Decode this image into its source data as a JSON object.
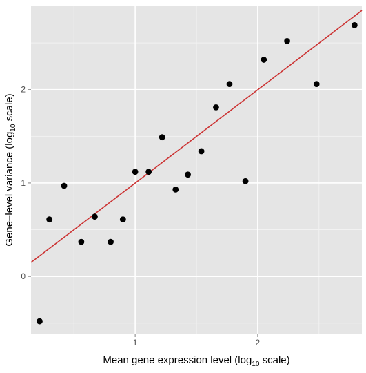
{
  "chart_data": {
    "type": "scatter",
    "title": "",
    "xlabel": {
      "prefix": "Mean gene expression level (log",
      "subscript": "10",
      "suffix": " scale)"
    },
    "ylabel": {
      "prefix": "Gene–level variance (log",
      "subscript": "10",
      "suffix": " scale)"
    },
    "xlim": [
      0.15,
      2.85
    ],
    "ylim": [
      -0.62,
      2.9
    ],
    "x_ticks": [
      1,
      2
    ],
    "x_tick_labels": [
      "1",
      "2"
    ],
    "y_ticks": [
      0,
      1,
      2
    ],
    "y_tick_labels": [
      "0",
      "1",
      "2"
    ],
    "grid": true,
    "legend": "none",
    "colors": {
      "panel_background": "#e5e5e5",
      "grid_major": "#ffffff",
      "grid_minor": "#f2f2f2",
      "points": "#000000",
      "fit_line": "#cc3333"
    },
    "points": [
      {
        "x": 0.22,
        "y": -0.48
      },
      {
        "x": 0.3,
        "y": 0.61
      },
      {
        "x": 0.42,
        "y": 0.97
      },
      {
        "x": 0.56,
        "y": 0.37
      },
      {
        "x": 0.67,
        "y": 0.64
      },
      {
        "x": 0.8,
        "y": 0.37
      },
      {
        "x": 0.9,
        "y": 0.61
      },
      {
        "x": 1.0,
        "y": 1.12
      },
      {
        "x": 1.11,
        "y": 1.12
      },
      {
        "x": 1.22,
        "y": 1.49
      },
      {
        "x": 1.33,
        "y": 0.93
      },
      {
        "x": 1.43,
        "y": 1.09
      },
      {
        "x": 1.54,
        "y": 1.34
      },
      {
        "x": 1.66,
        "y": 1.81
      },
      {
        "x": 1.77,
        "y": 2.06
      },
      {
        "x": 1.9,
        "y": 1.02
      },
      {
        "x": 2.05,
        "y": 2.32
      },
      {
        "x": 2.24,
        "y": 2.52
      },
      {
        "x": 2.48,
        "y": 2.06
      },
      {
        "x": 2.79,
        "y": 2.69
      }
    ],
    "fit_line": {
      "slope": 0.999,
      "intercept": 0.0
    }
  }
}
